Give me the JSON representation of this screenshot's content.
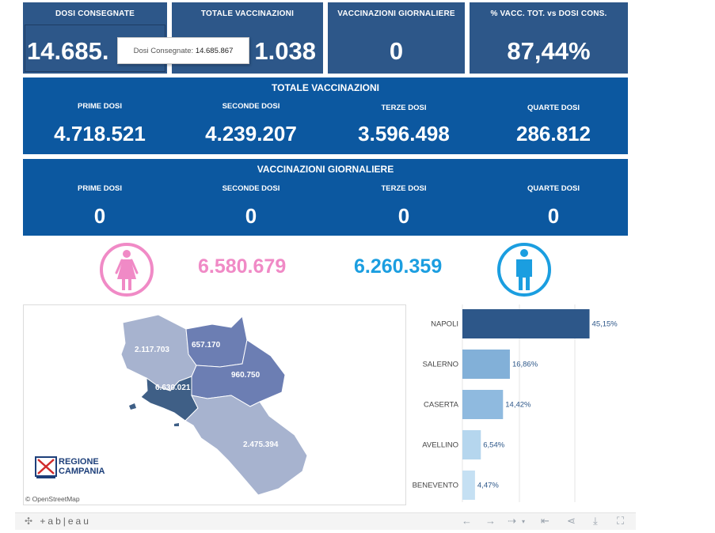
{
  "kpis": [
    {
      "label": "DOSI  CONSEGNATE",
      "value": "14.685."
    },
    {
      "label": "TOTALE VACCINAZIONI",
      "value": "1.038"
    },
    {
      "label": "VACCINAZIONI GIORNALIERE",
      "value": "0"
    },
    {
      "label": "% VACC. TOT. vs DOSI CONS.",
      "value": "87,44%"
    }
  ],
  "tooltip": {
    "label": "Dosi Consegnate:",
    "value": "14.685.867"
  },
  "totale": {
    "title": "TOTALE VACCINAZIONI",
    "cells": [
      {
        "label": "PRIME DOSI",
        "value": "4.718.521"
      },
      {
        "label": "SECONDE DOSI",
        "value": "4.239.207"
      },
      {
        "label": "TERZE DOSI",
        "value": "3.596.498"
      },
      {
        "label": "QUARTE DOSI",
        "value": "286.812"
      }
    ]
  },
  "giornaliere": {
    "title": "VACCINAZIONI GIORNALIERE",
    "cells": [
      {
        "label": "PRIME DOSI",
        "value": "0"
      },
      {
        "label": "SECONDE DOSI",
        "value": "0"
      },
      {
        "label": "TERZE DOSI",
        "value": "0"
      },
      {
        "label": "QUARTE DOSI",
        "value": "0"
      }
    ]
  },
  "gender": {
    "female_value": "6.580.679",
    "female_color": "#f08ac6",
    "male_value": "6.260.359",
    "male_color": "#1b9ee0"
  },
  "map": {
    "regions": [
      {
        "name": "Caserta",
        "value": "2.117.703"
      },
      {
        "name": "Benevento",
        "value": "657.170"
      },
      {
        "name": "Avellino",
        "value": "960.750"
      },
      {
        "name": "Napoli",
        "value": "6.630.021"
      },
      {
        "name": "Salerno",
        "value": "2.475.394"
      }
    ],
    "attribution": "© OpenStreetMap",
    "logo_line1": "REGIONE",
    "logo_line2": "CAMPANIA"
  },
  "chart_data": {
    "type": "bar",
    "orientation": "horizontal",
    "categories": [
      "NAPOLI",
      "SALERNO",
      "CASERTA",
      "AVELLINO",
      "BENEVENTO"
    ],
    "values": [
      45.15,
      16.86,
      14.42,
      6.54,
      4.47
    ],
    "labels": [
      "45,15%",
      "16,86%",
      "14,42%",
      "6,54%",
      "4,47%"
    ],
    "colors": [
      "#2d5789",
      "#82b0d8",
      "#8fbadf",
      "#b5d6ee",
      "#c5e0f3"
    ],
    "xlim": [
      0,
      50
    ]
  },
  "footer": {
    "brand": "+ab|eau"
  }
}
